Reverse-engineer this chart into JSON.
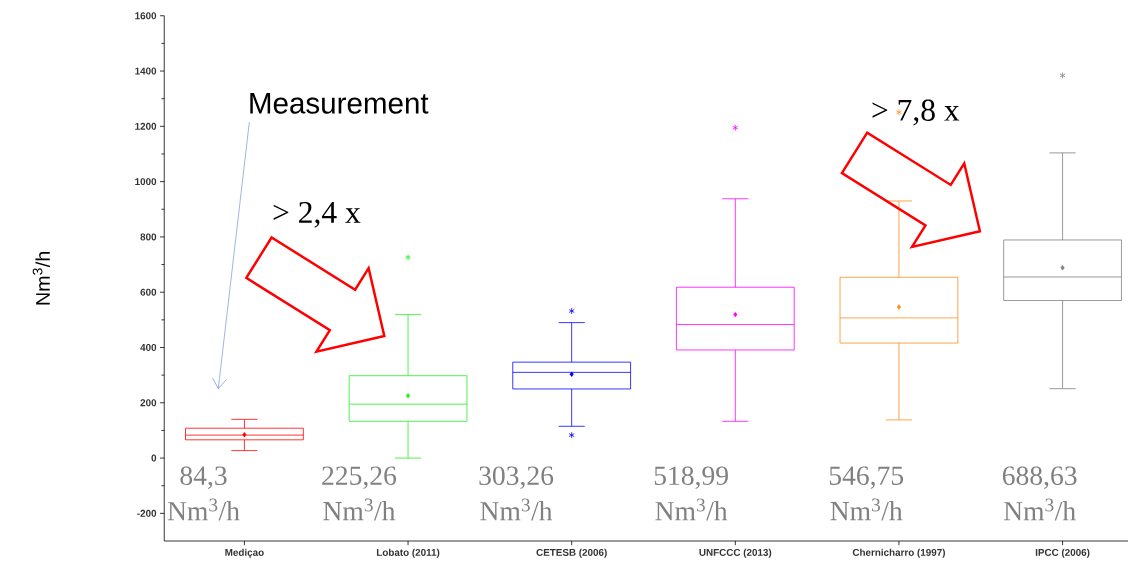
{
  "chart_data": {
    "type": "box",
    "ylabel": "Nm$^{3}$/h",
    "categories": [
      "Mediçao",
      "Lobato (2011)",
      "CETESB (2006)",
      "UNFCCC (2013)",
      "Chernicharro (1997)",
      "IPCC (2006)"
    ],
    "colors": [
      "#ff0000",
      "#22ee22",
      "#0000ff",
      "#ff00ff",
      "#ff8c1a",
      "#808080"
    ],
    "boxes": [
      {
        "low": 27,
        "q1": 66,
        "median": 83,
        "q3": 108,
        "high": 140,
        "mean": 84.3
      },
      {
        "low": 0,
        "q1": 133,
        "median": 195,
        "q3": 298,
        "high": 519,
        "mean": 225.26,
        "outliers": [
          726
        ]
      },
      {
        "low": 115,
        "q1": 250,
        "median": 310,
        "q3": 347,
        "high": 490,
        "mean": 303.26,
        "outliers": [
          532,
          83
        ]
      },
      {
        "low": 133,
        "q1": 391,
        "median": 483,
        "q3": 618,
        "high": 938,
        "mean": 518.99,
        "outliers": [
          1195
        ]
      },
      {
        "low": 138,
        "q1": 416,
        "median": 507,
        "q3": 654,
        "high": 930,
        "mean": 546.75,
        "outliers": [
          1251
        ]
      },
      {
        "low": 251,
        "q1": 570,
        "median": 655,
        "q3": 789,
        "high": 1104,
        "mean": 688.63,
        "outliers": [
          1384
        ]
      }
    ],
    "ylim": [
      -300,
      1600
    ],
    "yticks": [
      -200,
      0,
      200,
      400,
      600,
      800,
      1000,
      1200,
      1400,
      1600
    ],
    "annotations": [
      "Measurement",
      "> 2,4 x",
      "> 7,8 x",
      "84,3 Nm$^{3}$/h",
      "225,26 Nm$^{3}$/h",
      "303,26 Nm$^{3}$/h",
      "518,99 Nm$^{3}$/h",
      "546,75 Nm$^{3}$/h",
      "688,63 Nm$^{3}$/h"
    ],
    "grid": false
  }
}
